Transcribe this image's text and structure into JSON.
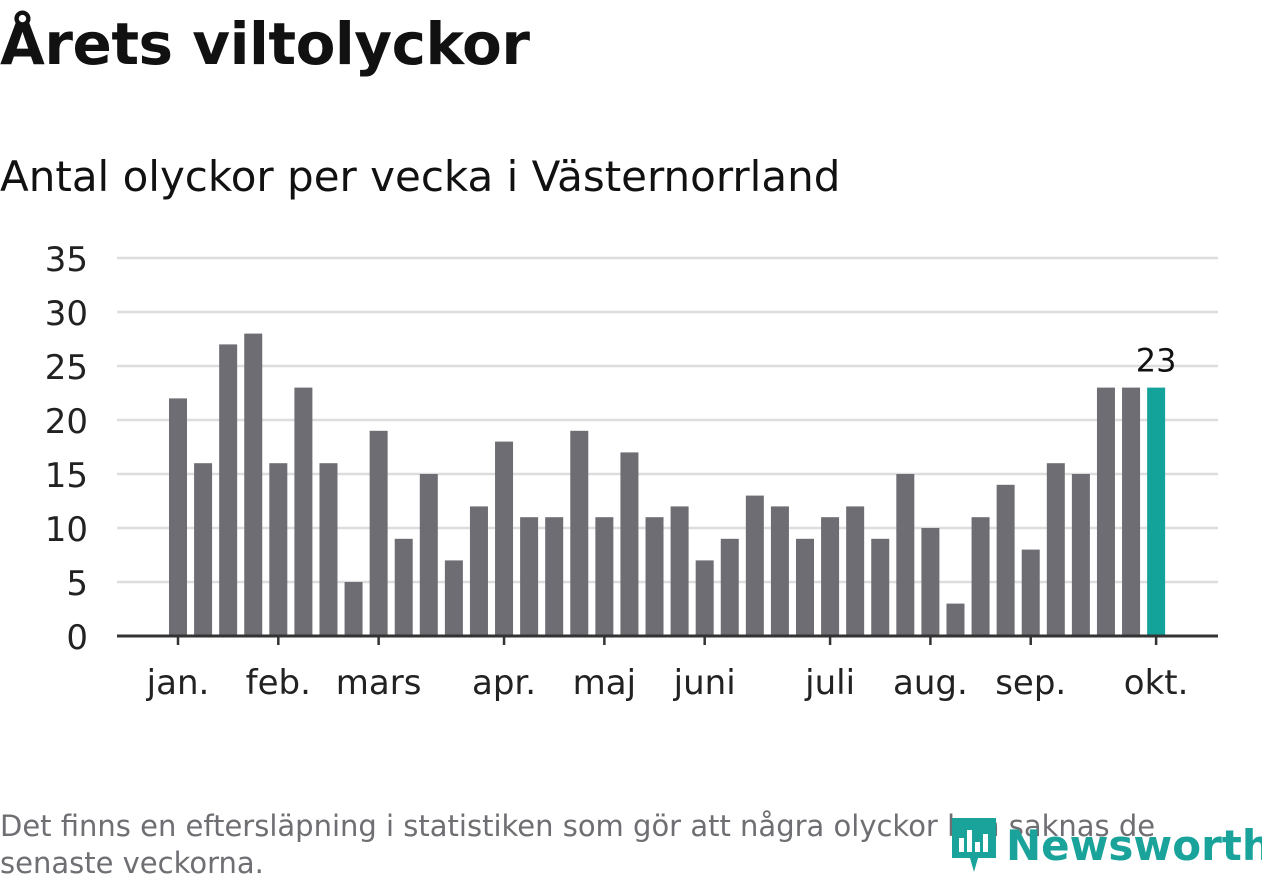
{
  "title": "Årets viltolyckor",
  "subtitle": "Antal olyckor per vecka i Västernorrland",
  "footnote": "Det finns en eftersläpning i statistiken som gör att några olyckor kan saknas de senaste veckorna.",
  "logo": {
    "name": "Newsworthy",
    "icon": "newsworthy-logo-icon"
  },
  "colors": {
    "bar": "#6e6d73",
    "highlight": "#13a39a",
    "grid": "#dddddd",
    "axis": "#333333",
    "text": "#222222"
  },
  "chart_data": {
    "type": "bar",
    "title": "Årets viltolyckor",
    "subtitle": "Antal olyckor per vecka i Västernorrland",
    "xlabel": "",
    "ylabel": "",
    "ylim": [
      0,
      35
    ],
    "yticks": [
      0,
      5,
      10,
      15,
      20,
      25,
      30,
      35
    ],
    "grid": true,
    "values": [
      22,
      16,
      27,
      28,
      16,
      23,
      16,
      5,
      19,
      9,
      15,
      7,
      12,
      18,
      11,
      11,
      19,
      11,
      17,
      11,
      12,
      7,
      9,
      13,
      12,
      9,
      11,
      12,
      9,
      15,
      10,
      3,
      11,
      14,
      8,
      16,
      15,
      23,
      23,
      23
    ],
    "highlight_index": 39,
    "highlight_label": "23",
    "month_labels": [
      {
        "label": "jan.",
        "bar_index": 0
      },
      {
        "label": "feb.",
        "bar_index": 4
      },
      {
        "label": "mars",
        "bar_index": 8
      },
      {
        "label": "apr.",
        "bar_index": 13
      },
      {
        "label": "maj",
        "bar_index": 17
      },
      {
        "label": "juni",
        "bar_index": 21
      },
      {
        "label": "juli",
        "bar_index": 26
      },
      {
        "label": "aug.",
        "bar_index": 30
      },
      {
        "label": "sep.",
        "bar_index": 34
      },
      {
        "label": "okt.",
        "bar_index": 39
      }
    ]
  }
}
